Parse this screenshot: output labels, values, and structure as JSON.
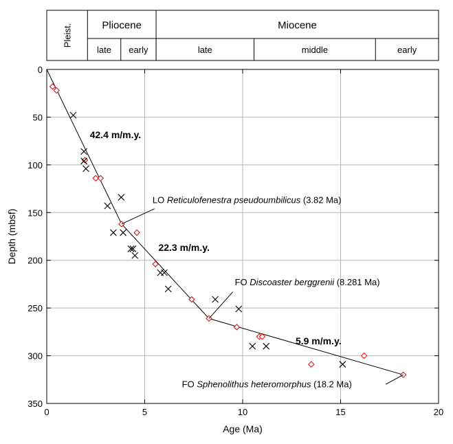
{
  "chart_data": {
    "type": "scatter",
    "xlabel": "Age (Ma)",
    "ylabel": "Depth (mbsf)",
    "xlim": [
      0,
      20
    ],
    "ylim": [
      350,
      0
    ],
    "y_inverted": true,
    "x_ticks": [
      "0",
      "5",
      "10",
      "15",
      "20"
    ],
    "y_ticks": [
      "0",
      "50",
      "100",
      "150",
      "200",
      "250",
      "300",
      "350"
    ],
    "grid": true,
    "legend": "none",
    "series": [
      {
        "marker": "diamond",
        "color": "#d40000",
        "points": [
          [
            0.3,
            18
          ],
          [
            0.5,
            22
          ],
          [
            1.95,
            95
          ],
          [
            2.5,
            114
          ],
          [
            2.75,
            114
          ],
          [
            3.82,
            162
          ],
          [
            4.6,
            171
          ],
          [
            5.55,
            204
          ],
          [
            7.4,
            241
          ],
          [
            8.281,
            261
          ],
          [
            9.7,
            270
          ],
          [
            10.85,
            280
          ],
          [
            11.0,
            280
          ],
          [
            13.5,
            309
          ],
          [
            16.2,
            300
          ],
          [
            18.2,
            320
          ]
        ]
      },
      {
        "marker": "x",
        "color": "#000000",
        "points": [
          [
            1.35,
            48
          ],
          [
            1.9,
            86
          ],
          [
            1.9,
            96
          ],
          [
            2.0,
            104
          ],
          [
            3.1,
            143
          ],
          [
            3.8,
            134
          ],
          [
            3.4,
            171
          ],
          [
            3.9,
            171
          ],
          [
            4.3,
            188
          ],
          [
            4.4,
            188
          ],
          [
            4.5,
            195
          ],
          [
            5.8,
            213
          ],
          [
            6.0,
            213
          ],
          [
            6.2,
            230
          ],
          [
            8.6,
            241
          ],
          [
            9.8,
            251
          ],
          [
            10.5,
            290
          ],
          [
            11.2,
            290
          ],
          [
            15.1,
            309
          ]
        ]
      },
      {
        "type": "line",
        "color": "#000000",
        "points": [
          [
            0,
            0
          ],
          [
            3.82,
            162
          ],
          [
            8.281,
            261
          ],
          [
            18.2,
            320
          ]
        ]
      }
    ],
    "annotations": {
      "rates": [
        {
          "text": "42.4 m/m.y.",
          "x": 2.2,
          "y": 72
        },
        {
          "text": "22.3 m/m.y.",
          "x": 5.7,
          "y": 190
        },
        {
          "text": "5.9 m/m.y.",
          "x": 12.7,
          "y": 288
        }
      ],
      "events": [
        {
          "prefix": "LO ",
          "name": "Reticulofenestra pseudoumbilicus",
          "suffix": " (3.82 Ma)",
          "x": 5.4,
          "y": 140,
          "pointer_from": [
            5.5,
            146
          ],
          "pointer_to": [
            3.82,
            162
          ]
        },
        {
          "prefix": "FO ",
          "name": "Discoaster berggrenii",
          "suffix": " (8.281 Ma)",
          "x": 9.6,
          "y": 226,
          "pointer_from": [
            9.5,
            233
          ],
          "pointer_to": [
            8.281,
            261
          ]
        },
        {
          "prefix": "FO ",
          "name": "Sphenolithus heteromorphus",
          "suffix": " (18.2 Ma)",
          "x": 6.9,
          "y": 333,
          "pointer_from": [
            17.3,
            330
          ],
          "pointer_to": [
            18.2,
            320
          ]
        }
      ]
    }
  },
  "timescale": {
    "pleist_label": "Pleist.",
    "epochs": [
      {
        "label": "Pliocene",
        "start": 1.8,
        "end": 5.3
      },
      {
        "label": "Miocene",
        "start": 5.3,
        "end": 20
      }
    ],
    "subdivisions": [
      {
        "label": "late",
        "start": 1.8,
        "end": 3.5
      },
      {
        "label": "early",
        "start": 3.5,
        "end": 5.3
      },
      {
        "label": "late",
        "start": 5.3,
        "end": 10.3
      },
      {
        "label": "middle",
        "start": 10.3,
        "end": 16.5
      },
      {
        "label": "early",
        "start": 16.5,
        "end": 20
      }
    ]
  }
}
